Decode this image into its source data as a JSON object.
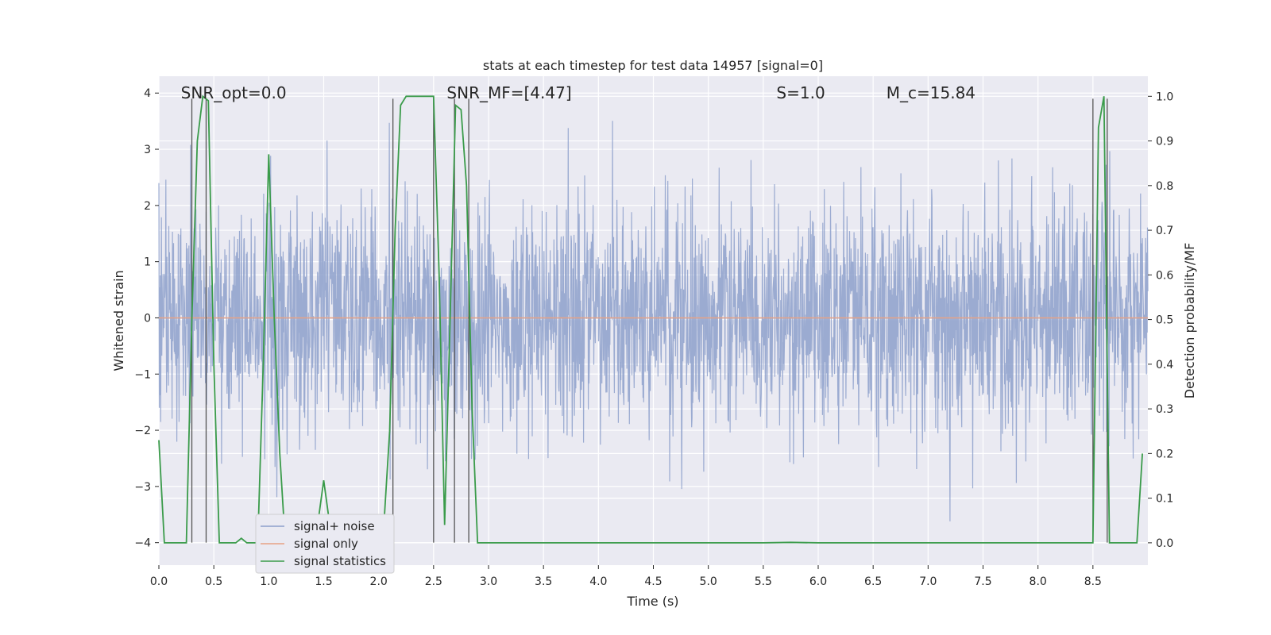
{
  "chart_data": {
    "type": "line",
    "title": "stats at each timestep for test data 14957 [signal=0]",
    "xlabel": "Time (s)",
    "ylabel": "Whitened strain",
    "y2label": "Detection probability/MF",
    "xlim": [
      0.0,
      9.0
    ],
    "ylim": [
      -4.4,
      4.3
    ],
    "y2lim": [
      -0.05,
      1.045
    ],
    "x_ticks": [
      0.0,
      0.5,
      1.0,
      1.5,
      2.0,
      2.5,
      3.0,
      3.5,
      4.0,
      4.5,
      5.0,
      5.5,
      6.0,
      6.5,
      7.0,
      7.5,
      8.0,
      8.5
    ],
    "x_tick_labels": [
      "0.0",
      "0.5",
      "1.0",
      "1.5",
      "2.0",
      "2.5",
      "3.0",
      "3.5",
      "4.0",
      "4.5",
      "5.0",
      "5.5",
      "6.0",
      "6.5",
      "7.0",
      "7.5",
      "8.0",
      "8.5"
    ],
    "y_ticks": [
      -4,
      -3,
      -2,
      -1,
      0,
      1,
      2,
      3,
      4
    ],
    "y_tick_labels": [
      "−4",
      "−3",
      "−2",
      "−1",
      "0",
      "1",
      "2",
      "3",
      "4"
    ],
    "y2_ticks": [
      0.0,
      0.1,
      0.2,
      0.3,
      0.4,
      0.5,
      0.6,
      0.7,
      0.8,
      0.9,
      1.0
    ],
    "y2_tick_labels": [
      "0.0",
      "0.1",
      "0.2",
      "0.3",
      "0.4",
      "0.5",
      "0.6",
      "0.7",
      "0.8",
      "0.9",
      "1.0"
    ],
    "grid": true,
    "annotations": [
      {
        "key": "snr_opt",
        "text": "SNR_opt=0.0",
        "x": 0.2
      },
      {
        "key": "snr_mf",
        "text": "SNR_MF=[4.47]",
        "x": 2.62
      },
      {
        "key": "spin",
        "text": "S=1.0",
        "x": 5.62
      },
      {
        "key": "chirp_mass",
        "text": "M_c=15.84",
        "x": 6.62
      }
    ],
    "annotation_y": 4.0,
    "vertical_markers": [
      0.3,
      0.43,
      2.13,
      2.5,
      2.69,
      2.82,
      8.5,
      8.63
    ],
    "vertical_marker_range": [
      -4.0,
      3.9
    ],
    "series": [
      {
        "name": "signal+ noise",
        "color": "#8da0cb",
        "axis": "left",
        "kind": "noise",
        "duration": 9.0,
        "n_points": 2700,
        "sigma": 1.0
      },
      {
        "name": "signal only",
        "color": "#e8a285",
        "axis": "left",
        "x": [
          0.0,
          9.0
        ],
        "values": [
          0.0,
          0.0
        ]
      },
      {
        "name": "signal statistics",
        "color": "#3a9b4a",
        "axis": "right",
        "x": [
          0.0,
          0.05,
          0.1,
          0.15,
          0.2,
          0.25,
          0.3,
          0.35,
          0.4,
          0.45,
          0.5,
          0.55,
          0.6,
          0.65,
          0.7,
          0.75,
          0.8,
          0.85,
          0.9,
          0.95,
          1.0,
          1.05,
          1.1,
          1.15,
          1.2,
          1.25,
          1.3,
          1.35,
          1.4,
          1.45,
          1.5,
          1.55,
          1.6,
          1.65,
          1.7,
          1.75,
          1.8,
          1.85,
          1.9,
          1.95,
          2.0,
          2.05,
          2.1,
          2.15,
          2.2,
          2.25,
          2.3,
          2.35,
          2.4,
          2.45,
          2.5,
          2.55,
          2.6,
          2.65,
          2.7,
          2.75,
          2.8,
          2.85,
          2.9,
          2.95,
          3.0,
          3.5,
          4.0,
          4.5,
          5.0,
          5.5,
          5.75,
          6.0,
          6.5,
          7.0,
          7.5,
          8.0,
          8.5,
          8.55,
          8.6,
          8.65,
          8.7,
          8.75,
          8.8,
          8.85,
          8.9,
          8.95
        ],
        "values": [
          0.23,
          0.0,
          0.0,
          0.0,
          0.0,
          0.0,
          0.5,
          0.9,
          1.0,
          0.99,
          0.4,
          0.0,
          0.0,
          0.0,
          0.0,
          0.01,
          0.0,
          0.0,
          0.0,
          0.4,
          0.87,
          0.5,
          0.2,
          0.0,
          0.0,
          0.0,
          0.0,
          0.0,
          0.0,
          0.05,
          0.14,
          0.05,
          0.0,
          0.0,
          0.0,
          0.0,
          0.0,
          0.0,
          0.0,
          0.0,
          0.02,
          0.05,
          0.25,
          0.7,
          0.98,
          1.0,
          1.0,
          1.0,
          1.0,
          1.0,
          1.0,
          0.6,
          0.04,
          0.5,
          0.98,
          0.97,
          0.8,
          0.3,
          0.0,
          0.0,
          0.0,
          0.0,
          0.0,
          0.0,
          0.0,
          0.0,
          0.001,
          0.0,
          0.0,
          0.0,
          0.0,
          0.0,
          0.0,
          0.93,
          1.0,
          0.0,
          0.0,
          0.0,
          0.0,
          0.0,
          0.0,
          0.2
        ]
      }
    ],
    "legend_location": "lower-left"
  }
}
